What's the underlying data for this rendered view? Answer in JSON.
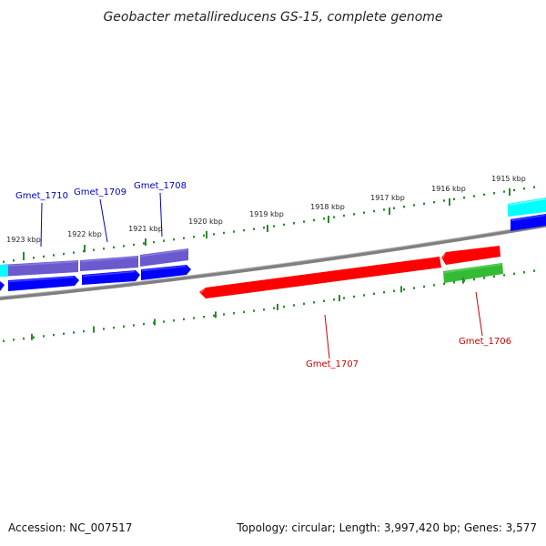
{
  "title": "Geobacter metallireducens GS-15, complete genome",
  "footer": {
    "accession": "Accession: NC_007517",
    "summary": "Topology: circular; Length: 3,997,420 bp; Genes: 3,577"
  },
  "colors": {
    "backbone": "#808080",
    "tick": "#2a8a2a",
    "forward_label": "#0000cc",
    "reverse_label": "#cc0000",
    "forward_gene": "#0000ff",
    "reverse_gene": "#ff0000",
    "slate_feature": "#6a5acd",
    "cyan_feature": "#00ffff",
    "green_feature": "#33bb33"
  },
  "ticks": [
    {
      "label": "1923 kbp"
    },
    {
      "label": "1922 kbp"
    },
    {
      "label": "1921 kbp"
    },
    {
      "label": "1920 kbp"
    },
    {
      "label": "1919 kbp"
    },
    {
      "label": "1918 kbp"
    },
    {
      "label": "1917 kbp"
    },
    {
      "label": "1916 kbp"
    },
    {
      "label": "1915 kbp"
    }
  ],
  "genes": [
    {
      "label": "Gmet_1710",
      "strand": "forward"
    },
    {
      "label": "Gmet_1709",
      "strand": "forward"
    },
    {
      "label": "Gmet_1708",
      "strand": "forward"
    },
    {
      "label": "Gmet_1707",
      "strand": "reverse"
    },
    {
      "label": "Gmet_1706",
      "strand": "reverse"
    }
  ]
}
